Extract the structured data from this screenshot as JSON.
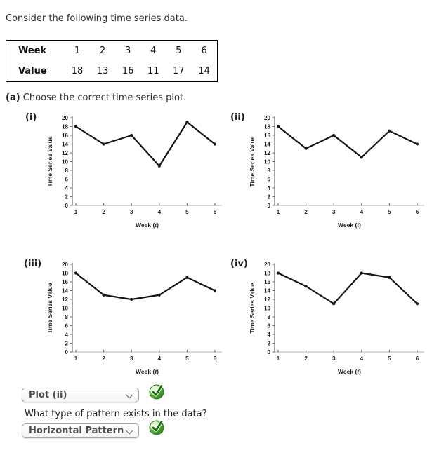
{
  "page": {
    "intro": "Consider the following time series data.",
    "part_a_label": "(a)",
    "part_a_text": "Choose the correct time series plot.",
    "question2": "What type of pattern exists in the data?"
  },
  "table": {
    "rows": [
      {
        "header": "Week",
        "values": [
          "1",
          "2",
          "3",
          "4",
          "5",
          "6"
        ]
      },
      {
        "header": "Value",
        "values": [
          "18",
          "13",
          "16",
          "11",
          "17",
          "14"
        ]
      }
    ]
  },
  "answers": {
    "plot_select": {
      "value": "Plot (ii)",
      "status": "correct"
    },
    "pattern_select": {
      "value": "Horizontal Pattern",
      "status": "correct"
    }
  },
  "icons": {
    "dropdown_chevron": "chevron-down",
    "answer_status": "correct-green-check-circle"
  },
  "colors": {
    "line": "#141414",
    "x_axis": "#b4b4b4",
    "y_axis": "#6b6b6b",
    "check_green": "#2f8b28",
    "select_border": "#a6a6a6",
    "select_text": "#4d4d4d"
  },
  "chart_data": [
    {
      "type": "line",
      "label": "(i)",
      "x": [
        1,
        2,
        3,
        4,
        5,
        6
      ],
      "values": [
        18,
        14,
        16,
        9,
        19,
        14
      ],
      "xlabel": "Week (t)",
      "ylabel": "Time Series Value",
      "ylim": [
        0,
        20
      ],
      "ytick_step": 2,
      "grid": false,
      "legend": false
    },
    {
      "type": "line",
      "label": "(ii)",
      "x": [
        1,
        2,
        3,
        4,
        5,
        6
      ],
      "values": [
        18,
        13,
        16,
        11,
        17,
        14
      ],
      "xlabel": "Week (t)",
      "ylabel": "Time Series Value",
      "ylim": [
        0,
        20
      ],
      "ytick_step": 2,
      "grid": false,
      "legend": false
    },
    {
      "type": "line",
      "label": "(iii)",
      "x": [
        1,
        2,
        3,
        4,
        5,
        6
      ],
      "values": [
        18,
        13,
        12,
        13,
        17,
        14
      ],
      "xlabel": "Week (t)",
      "ylabel": "Time Series Value",
      "ylim": [
        0,
        20
      ],
      "ytick_step": 2,
      "grid": false,
      "legend": false
    },
    {
      "type": "line",
      "label": "(iv)",
      "x": [
        1,
        2,
        3,
        4,
        5,
        6
      ],
      "values": [
        18,
        15,
        11,
        18,
        17,
        11
      ],
      "xlabel": "Week (t)",
      "ylabel": "Time Series Value",
      "ylim": [
        0,
        20
      ],
      "ytick_step": 2,
      "grid": false,
      "legend": false
    }
  ]
}
